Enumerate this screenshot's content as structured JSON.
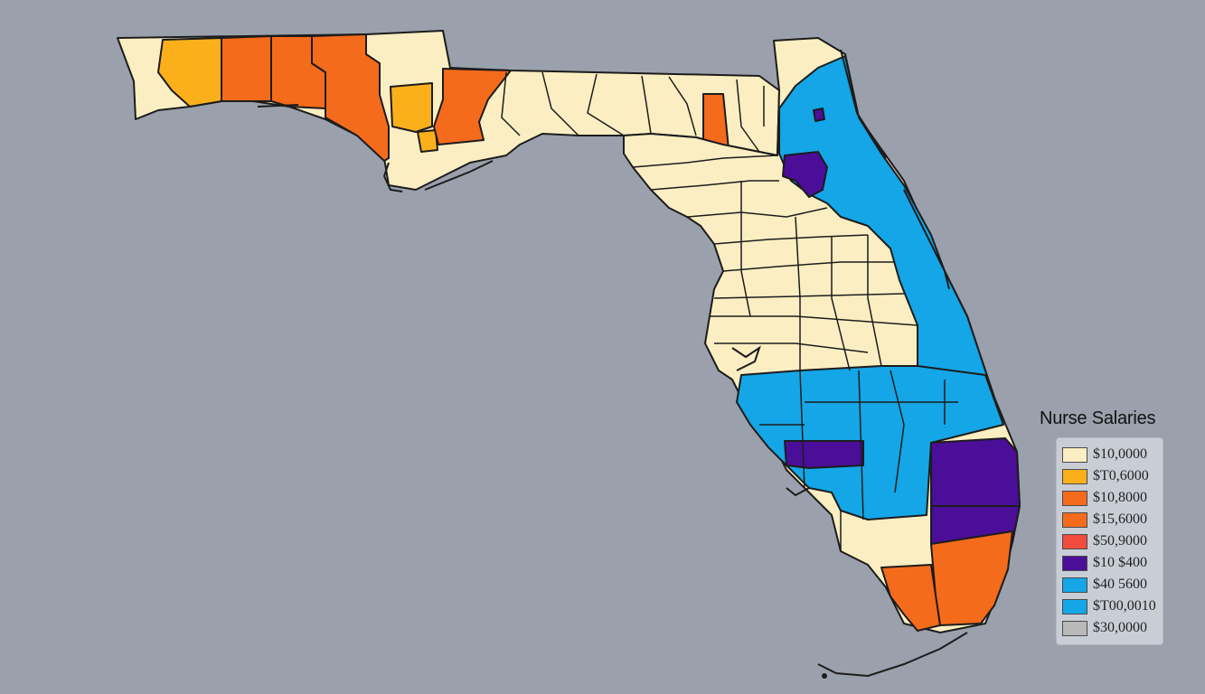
{
  "legend": {
    "title": "Nurse Salaries",
    "items": [
      {
        "label": "$10,0000",
        "color": "#fbeec2"
      },
      {
        "label": "$T0,6000",
        "color": "#fbb01b"
      },
      {
        "label": "$10,8000",
        "color": "#f46b1c"
      },
      {
        "label": "$15,6000",
        "color": "#f46b1c"
      },
      {
        "label": "$50,9000",
        "color": "#ef4b3f"
      },
      {
        "label": "$10 $400",
        "color": "#4b0e98"
      },
      {
        "label": "$40 5600",
        "color": "#14a6e6"
      },
      {
        "label": "$T00,0010",
        "color": "#14a6e6"
      },
      {
        "label": "$30,0000",
        "color": "#b9b9b9"
      }
    ]
  },
  "colors": {
    "background": "#9aa1ac",
    "cream": "#fbeec2",
    "yellow_orange": "#fbb01b",
    "orange": "#f46b1c",
    "blue": "#14a6e6",
    "purple": "#4b0e98"
  }
}
